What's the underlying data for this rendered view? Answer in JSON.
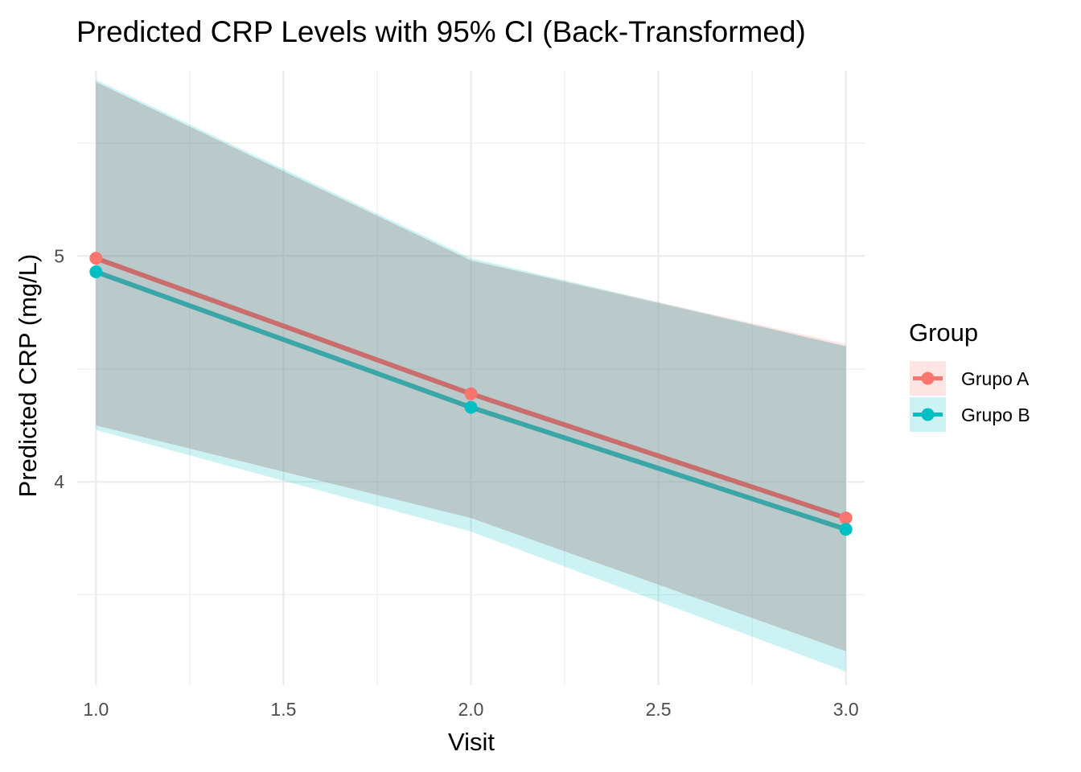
{
  "chart_data": {
    "type": "line",
    "title": "Predicted CRP Levels with 95% CI (Back-Transformed)",
    "xlabel": "Visit",
    "ylabel": "Predicted CRP (mg/L)",
    "x": [
      1.0,
      2.0,
      3.0
    ],
    "xlim": [
      0.95,
      3.05
    ],
    "ylim": [
      3.1,
      5.82
    ],
    "x_major_ticks": [
      1.0,
      1.5,
      2.0,
      2.5,
      3.0
    ],
    "x_tick_labels": [
      "1.0",
      "1.5",
      "2.0",
      "2.5",
      "3.0"
    ],
    "x_minor_ticks": [
      1.25,
      1.75,
      2.25,
      2.75
    ],
    "y_major_ticks": [
      4,
      5
    ],
    "y_tick_labels": [
      "4",
      "5"
    ],
    "y_minor_ticks": [
      3.5,
      4.5,
      5.5
    ],
    "grid": true,
    "legend": {
      "title": "Group",
      "position": "right"
    },
    "series": [
      {
        "name": "Grupo A",
        "color": "#F8766D",
        "fill": "#F8766D",
        "values": [
          4.99,
          4.39,
          3.84
        ],
        "ci_lower": [
          4.25,
          3.84,
          3.25
        ],
        "ci_upper": [
          5.77,
          4.98,
          4.61
        ]
      },
      {
        "name": "Grupo B",
        "color": "#00BFC4",
        "fill": "#00BFC4",
        "values": [
          4.93,
          4.33,
          3.79
        ],
        "ci_lower": [
          4.23,
          3.78,
          3.16
        ],
        "ci_upper": [
          5.78,
          4.99,
          4.6
        ]
      }
    ]
  }
}
